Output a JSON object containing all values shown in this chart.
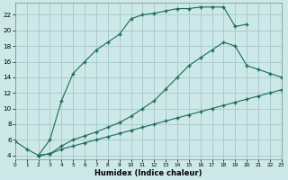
{
  "xlabel": "Humidex (Indice chaleur)",
  "bg_color": "#cde8e8",
  "grid_color": "#aacccc",
  "line_color": "#1a6b5a",
  "xlim": [
    0,
    23
  ],
  "ylim": [
    3.5,
    23.5
  ],
  "xticks": [
    0,
    1,
    2,
    3,
    4,
    5,
    6,
    7,
    8,
    9,
    10,
    11,
    12,
    13,
    14,
    15,
    16,
    17,
    18,
    19,
    20,
    21,
    22,
    23
  ],
  "yticks": [
    4,
    6,
    8,
    10,
    12,
    14,
    16,
    18,
    20,
    22
  ],
  "line1_x": [
    0,
    1,
    2,
    3,
    4,
    5,
    6,
    7,
    8,
    9,
    10,
    11,
    12,
    13,
    14,
    15,
    16,
    17,
    18,
    19,
    20,
    21,
    22,
    23
  ],
  "line1_y": [
    5.8,
    4.8,
    4.0,
    4.2,
    4.8,
    5.2,
    5.6,
    6.0,
    6.4,
    6.8,
    7.2,
    7.6,
    8.0,
    8.4,
    8.8,
    9.2,
    9.6,
    10.0,
    10.4,
    10.8,
    11.2,
    11.6,
    12.0,
    12.4
  ],
  "line2_x": [
    2,
    3,
    4,
    5,
    6,
    7,
    8,
    9,
    10,
    11,
    12,
    13,
    14,
    15,
    16,
    17,
    18,
    19,
    20,
    21,
    22,
    23
  ],
  "line2_y": [
    4.0,
    4.2,
    5.2,
    6.0,
    6.5,
    7.0,
    7.6,
    8.2,
    9.0,
    10.0,
    11.0,
    12.5,
    14.0,
    15.5,
    16.5,
    17.5,
    18.5,
    18.0,
    15.5,
    15.0,
    14.5,
    14.0
  ],
  "line3_x": [
    2,
    3,
    4,
    5,
    6,
    7,
    8,
    9,
    10,
    11,
    12,
    13,
    14,
    15,
    16,
    17,
    18,
    19,
    20
  ],
  "line3_y": [
    4.0,
    6.0,
    11.0,
    14.5,
    16.0,
    17.5,
    18.5,
    19.5,
    21.5,
    22.0,
    22.2,
    22.5,
    22.8,
    22.8,
    23.0,
    23.0,
    23.0,
    20.5,
    20.8
  ]
}
